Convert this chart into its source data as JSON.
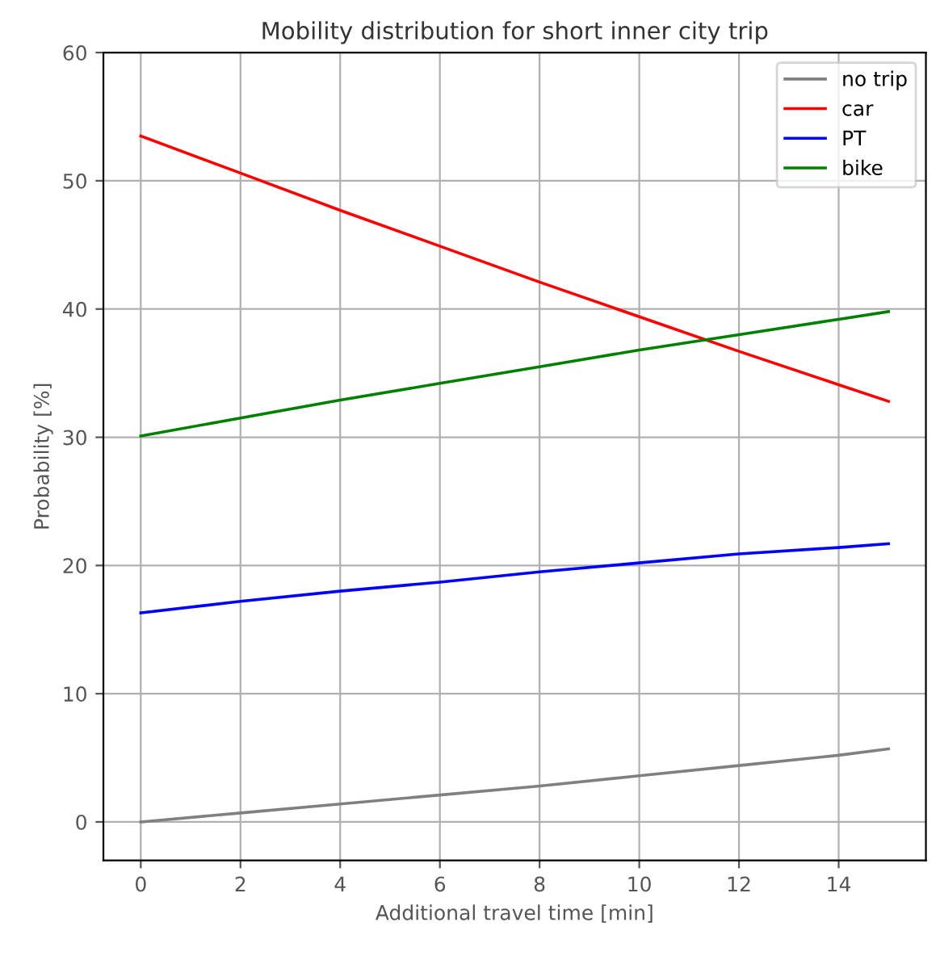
{
  "chart_data": {
    "type": "line",
    "title": "Mobility distribution for short inner city trip",
    "xlabel": "Additional travel time [min]",
    "ylabel": "Probability [%]",
    "x": [
      0,
      2,
      4,
      6,
      8,
      10,
      12,
      14,
      15
    ],
    "series": [
      {
        "name": "no trip",
        "color": "#808080",
        "values": [
          0,
          0.7,
          1.4,
          2.1,
          2.8,
          3.6,
          4.4,
          5.2,
          5.7
        ]
      },
      {
        "name": "car",
        "color": "#ff0000",
        "values": [
          53.5,
          50.6,
          47.7,
          44.9,
          42.1,
          39.4,
          36.7,
          34.1,
          32.8
        ]
      },
      {
        "name": "PT",
        "color": "#0000ff",
        "values": [
          16.3,
          17.2,
          18.0,
          18.7,
          19.5,
          20.2,
          20.9,
          21.4,
          21.7
        ]
      },
      {
        "name": "bike",
        "color": "#008000",
        "values": [
          30.1,
          31.5,
          32.9,
          34.2,
          35.5,
          36.8,
          38.0,
          39.2,
          39.8
        ]
      }
    ],
    "xlim": [
      -0.75,
      15.75
    ],
    "ylim": [
      -3,
      60
    ],
    "xticks": [
      0,
      2,
      4,
      6,
      8,
      10,
      12,
      14
    ],
    "yticks": [
      0,
      10,
      20,
      30,
      40,
      50,
      60
    ],
    "grid": true,
    "legend": "top right",
    "marker": "none",
    "line_style": "solid"
  }
}
